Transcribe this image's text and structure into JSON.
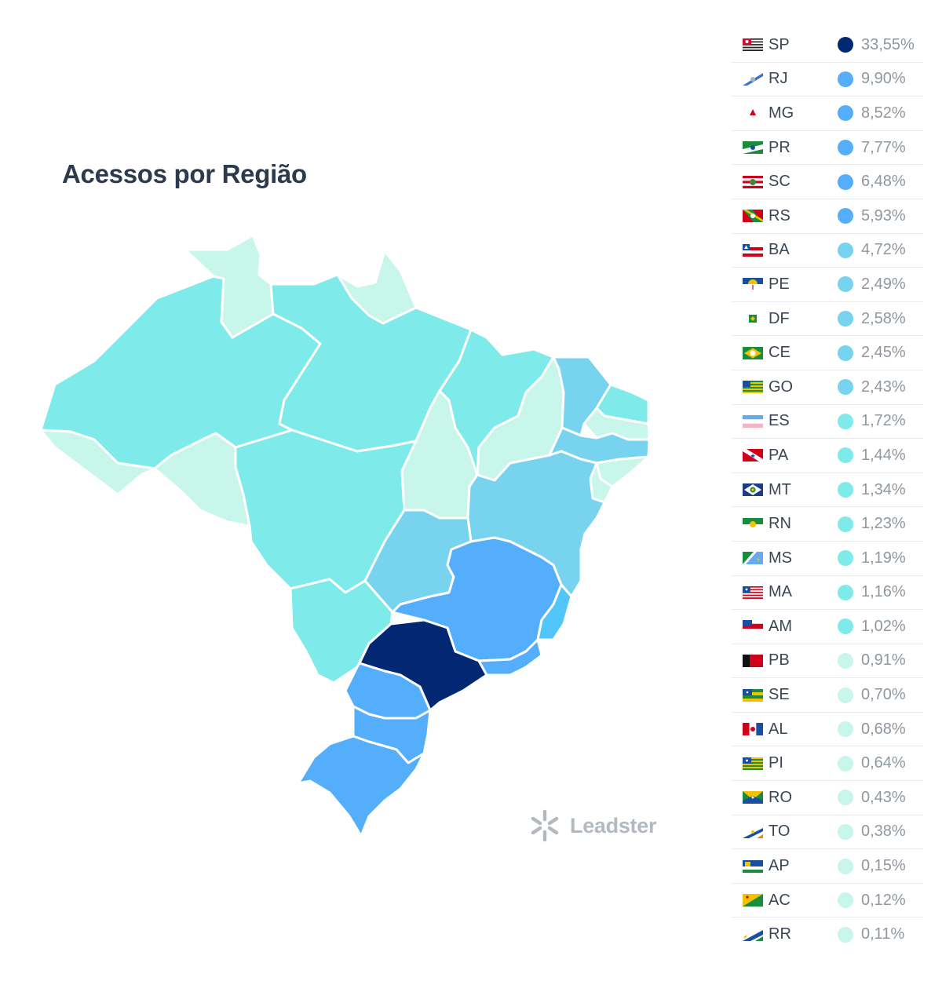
{
  "title": "Acessos por Região",
  "brand": "Leadster",
  "colors": {
    "tier1": "#022874",
    "tier2": "#55aefc",
    "tier3": "#78d3ef",
    "tier4": "#7feaea",
    "tier5": "#c8f6ea",
    "es": "#52c6fb"
  },
  "states": [
    {
      "code": "SP",
      "value": "33,55%",
      "tier": "tier1",
      "flag": "sp-flag-icon"
    },
    {
      "code": "RJ",
      "value": "9,90%",
      "tier": "tier2",
      "flag": "rj-flag-icon"
    },
    {
      "code": "MG",
      "value": "8,52%",
      "tier": "tier2",
      "flag": "mg-flag-icon"
    },
    {
      "code": "PR",
      "value": "7,77%",
      "tier": "tier2",
      "flag": "pr-flag-icon"
    },
    {
      "code": "SC",
      "value": "6,48%",
      "tier": "tier2",
      "flag": "sc-flag-icon"
    },
    {
      "code": "RS",
      "value": "5,93%",
      "tier": "tier2",
      "flag": "rs-flag-icon"
    },
    {
      "code": "BA",
      "value": "4,72%",
      "tier": "tier3",
      "flag": "ba-flag-icon"
    },
    {
      "code": "PE",
      "value": "2,49%",
      "tier": "tier3",
      "flag": "pe-flag-icon"
    },
    {
      "code": "DF",
      "value": "2,58%",
      "tier": "tier3",
      "flag": "df-flag-icon"
    },
    {
      "code": "CE",
      "value": "2,45%",
      "tier": "tier3",
      "flag": "ce-flag-icon"
    },
    {
      "code": "GO",
      "value": "2,43%",
      "tier": "tier3",
      "flag": "go-flag-icon"
    },
    {
      "code": "ES",
      "value": "1,72%",
      "tier": "tier4",
      "flag": "es-flag-icon"
    },
    {
      "code": "PA",
      "value": "1,44%",
      "tier": "tier4",
      "flag": "pa-flag-icon"
    },
    {
      "code": "MT",
      "value": "1,34%",
      "tier": "tier4",
      "flag": "mt-flag-icon"
    },
    {
      "code": "RN",
      "value": "1,23%",
      "tier": "tier4",
      "flag": "rn-flag-icon"
    },
    {
      "code": "MS",
      "value": "1,19%",
      "tier": "tier4",
      "flag": "ms-flag-icon"
    },
    {
      "code": "MA",
      "value": "1,16%",
      "tier": "tier4",
      "flag": "ma-flag-icon"
    },
    {
      "code": "AM",
      "value": "1,02%",
      "tier": "tier4",
      "flag": "am-flag-icon"
    },
    {
      "code": "PB",
      "value": "0,91%",
      "tier": "tier5",
      "flag": "pb-flag-icon"
    },
    {
      "code": "SE",
      "value": "0,70%",
      "tier": "tier5",
      "flag": "se-flag-icon"
    },
    {
      "code": "AL",
      "value": "0,68%",
      "tier": "tier5",
      "flag": "al-flag-icon"
    },
    {
      "code": "PI",
      "value": "0,64%",
      "tier": "tier5",
      "flag": "pi-flag-icon"
    },
    {
      "code": "RO",
      "value": "0,43%",
      "tier": "tier5",
      "flag": "ro-flag-icon"
    },
    {
      "code": "TO",
      "value": "0,38%",
      "tier": "tier5",
      "flag": "to-flag-icon"
    },
    {
      "code": "AP",
      "value": "0,15%",
      "tier": "tier5",
      "flag": "ap-flag-icon"
    },
    {
      "code": "AC",
      "value": "0,12%",
      "tier": "tier5",
      "flag": "ac-flag-icon"
    },
    {
      "code": "RR",
      "value": "0,11%",
      "tier": "tier5",
      "flag": "rr-flag-icon"
    }
  ]
}
